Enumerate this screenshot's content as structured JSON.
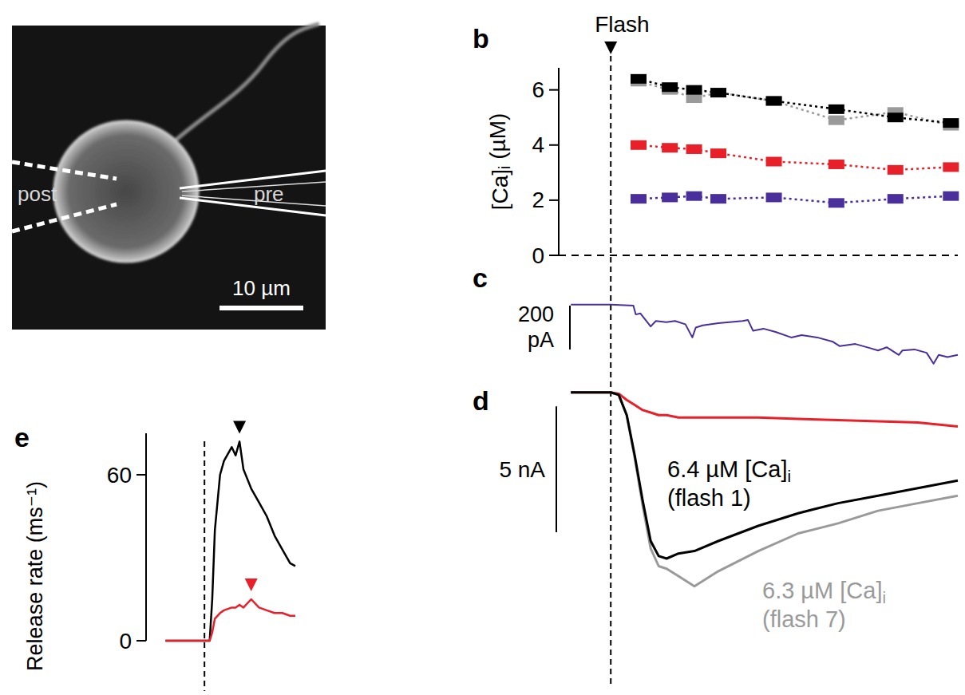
{
  "micrograph": {
    "labels": [
      "post",
      "pre"
    ],
    "scale_bar": {
      "value": 10,
      "label": "10 µm"
    }
  },
  "chart_data": [
    {
      "panel": "b",
      "type": "line",
      "marker": "square",
      "line_style": "dotted",
      "tick_labels": "y",
      "flash": {
        "label": "Flash",
        "x": 0
      },
      "y_label": "[Ca]i (µM)",
      "xlim": [
        -15,
        100
      ],
      "ylim": [
        0,
        6.8
      ],
      "yticks": [
        0,
        2,
        4,
        6
      ],
      "x": [
        8,
        17,
        24,
        31,
        47,
        65,
        82,
        98
      ],
      "series": [
        {
          "color": "#000000",
          "values": [
            6.4,
            6.1,
            6.0,
            5.9,
            5.6,
            5.3,
            5.0,
            4.8
          ]
        },
        {
          "color": "#9a9a9a",
          "values": [
            6.3,
            6.0,
            5.7,
            5.9,
            5.6,
            4.9,
            5.2,
            4.7
          ]
        },
        {
          "color": "#e8202a",
          "values": [
            4.0,
            3.9,
            3.85,
            3.7,
            3.4,
            3.3,
            3.1,
            3.2
          ]
        },
        {
          "color": "#4a2f9c",
          "values": [
            2.05,
            2.1,
            2.15,
            2.05,
            2.1,
            1.9,
            2.05,
            2.15
          ]
        }
      ]
    },
    {
      "panel": "c",
      "type": "line",
      "color": "#4a2f9c",
      "tick_labels": false,
      "xlim": [
        -15,
        100
      ],
      "ylim": [
        -300,
        50
      ],
      "scale_bar": {
        "value": 200,
        "label": "200 pA"
      },
      "x": [
        -11.5,
        0,
        6.5,
        7.2,
        8.5,
        10,
        11.5,
        13,
        16,
        18.5,
        21.5,
        23.5,
        24.5,
        26.5,
        31,
        38,
        39.5,
        41,
        44,
        47.5,
        52,
        55,
        59.5,
        64,
        66,
        70.5,
        75,
        77,
        79.5,
        83,
        84,
        87.5,
        91,
        93,
        94.5,
        97,
        100
      ],
      "values": [
        0,
        0,
        -5,
        -45,
        -40,
        -70,
        -100,
        -75,
        -80,
        -75,
        -90,
        -150,
        -105,
        -95,
        -85,
        -75,
        -70,
        -120,
        -110,
        -125,
        -150,
        -140,
        -150,
        -170,
        -190,
        -180,
        -200,
        -210,
        -195,
        -230,
        -210,
        -205,
        -220,
        -270,
        -230,
        -240,
        -230
      ]
    },
    {
      "panel": "d",
      "type": "line",
      "tick_labels": false,
      "xlim": [
        -15,
        100
      ],
      "ylim": [
        -8.5,
        0.5
      ],
      "scale_bar": {
        "value": 5,
        "label": "5 nA"
      },
      "x": [
        -11.5,
        0,
        2.3,
        4.6,
        6.9,
        9.2,
        11.5,
        13.8,
        16.1,
        19.5,
        24.1,
        31,
        42.5,
        54,
        65.5,
        77,
        88.5,
        100
      ],
      "series": [
        {
          "name": "6.4 µM [Ca]i (flash 1)",
          "color": "#000000",
          "values": [
            0,
            0,
            -0.1,
            -0.9,
            -2.5,
            -4.3,
            -5.9,
            -6.5,
            -6.6,
            -6.4,
            -6.3,
            -5.9,
            -5.3,
            -4.8,
            -4.4,
            -4.1,
            -3.8,
            -3.5
          ]
        },
        {
          "name": "6.3 µM [Ca]i (flash 7)",
          "color": "#9a9a9a",
          "values": [
            0,
            0,
            -0.1,
            -0.9,
            -2.6,
            -4.5,
            -6.2,
            -6.9,
            -7.0,
            -7.3,
            -7.7,
            -7.1,
            -6.3,
            -5.6,
            -5.2,
            -4.7,
            -4.4,
            -4.1
          ]
        },
        {
          "color": "#e8202a",
          "values": [
            0,
            0,
            -0.05,
            -0.3,
            -0.5,
            -0.7,
            -0.8,
            -0.9,
            -0.9,
            -1.0,
            -1.0,
            -1.0,
            -1.0,
            -1.05,
            -1.1,
            -1.15,
            -1.2,
            -1.35
          ]
        }
      ]
    },
    {
      "panel": "e",
      "type": "line",
      "tick_labels": "y",
      "flash": {
        "x": 0
      },
      "y_label": "Release rate (ms⁻¹)",
      "xlim": [
        -45,
        70
      ],
      "ylim": [
        0,
        75
      ],
      "yticks": [
        0,
        60
      ],
      "x": [
        -30,
        -15,
        0,
        4,
        6,
        8,
        12,
        15,
        21,
        24,
        27,
        30,
        36,
        42,
        48,
        54,
        60,
        66,
        70
      ],
      "series": [
        {
          "color": "#000000",
          "values": [
            0,
            0,
            0,
            0,
            15,
            40,
            60,
            65,
            70,
            67,
            72,
            62,
            55,
            50,
            45,
            38,
            33,
            28,
            27
          ]
        },
        {
          "color": "#e8202a",
          "values": [
            0,
            0,
            0,
            0,
            3,
            8,
            10,
            11,
            12,
            12,
            13,
            12,
            15,
            12,
            11,
            10,
            10,
            9,
            9
          ]
        }
      ]
    }
  ]
}
